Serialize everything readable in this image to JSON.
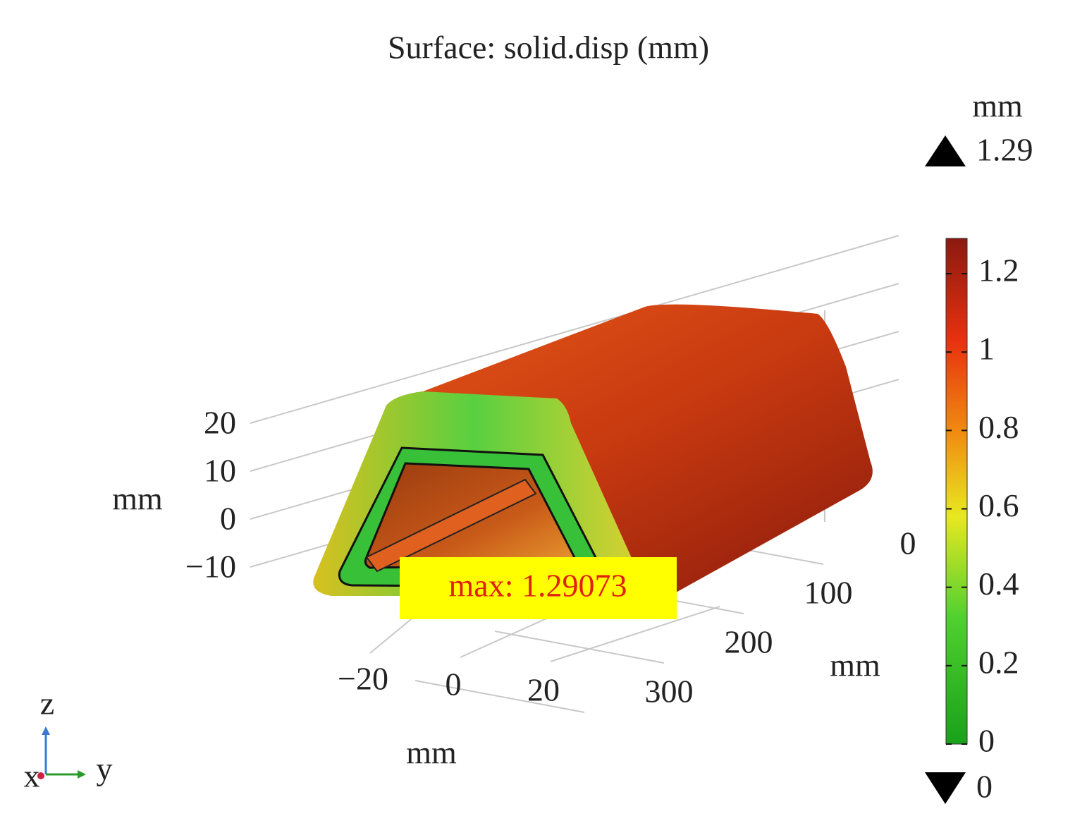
{
  "chart_data": {
    "type": "surface",
    "title": "Surface: solid.disp (mm)",
    "annotation": "max: 1.29073",
    "x_axis_label": "mm",
    "y_axis_label": "mm",
    "z_axis_label": "mm",
    "xticks": [
      {
        "value": -20,
        "label": "−20"
      },
      0,
      20
    ],
    "yticks": [
      0,
      100,
      200,
      300
    ],
    "zticks": [
      20,
      10,
      {
        "value": 0,
        "label": "0"
      },
      {
        "value": -10,
        "label": "−10"
      }
    ],
    "colorbar": {
      "unit": "mm",
      "lim": [
        0,
        1.29
      ],
      "max_label": "1.29",
      "min_label": "0",
      "ticks": [
        0,
        0.2,
        0.4,
        0.6,
        0.8,
        1,
        1.2
      ]
    },
    "triad": {
      "z": "z",
      "x": "x",
      "y": "y"
    }
  }
}
